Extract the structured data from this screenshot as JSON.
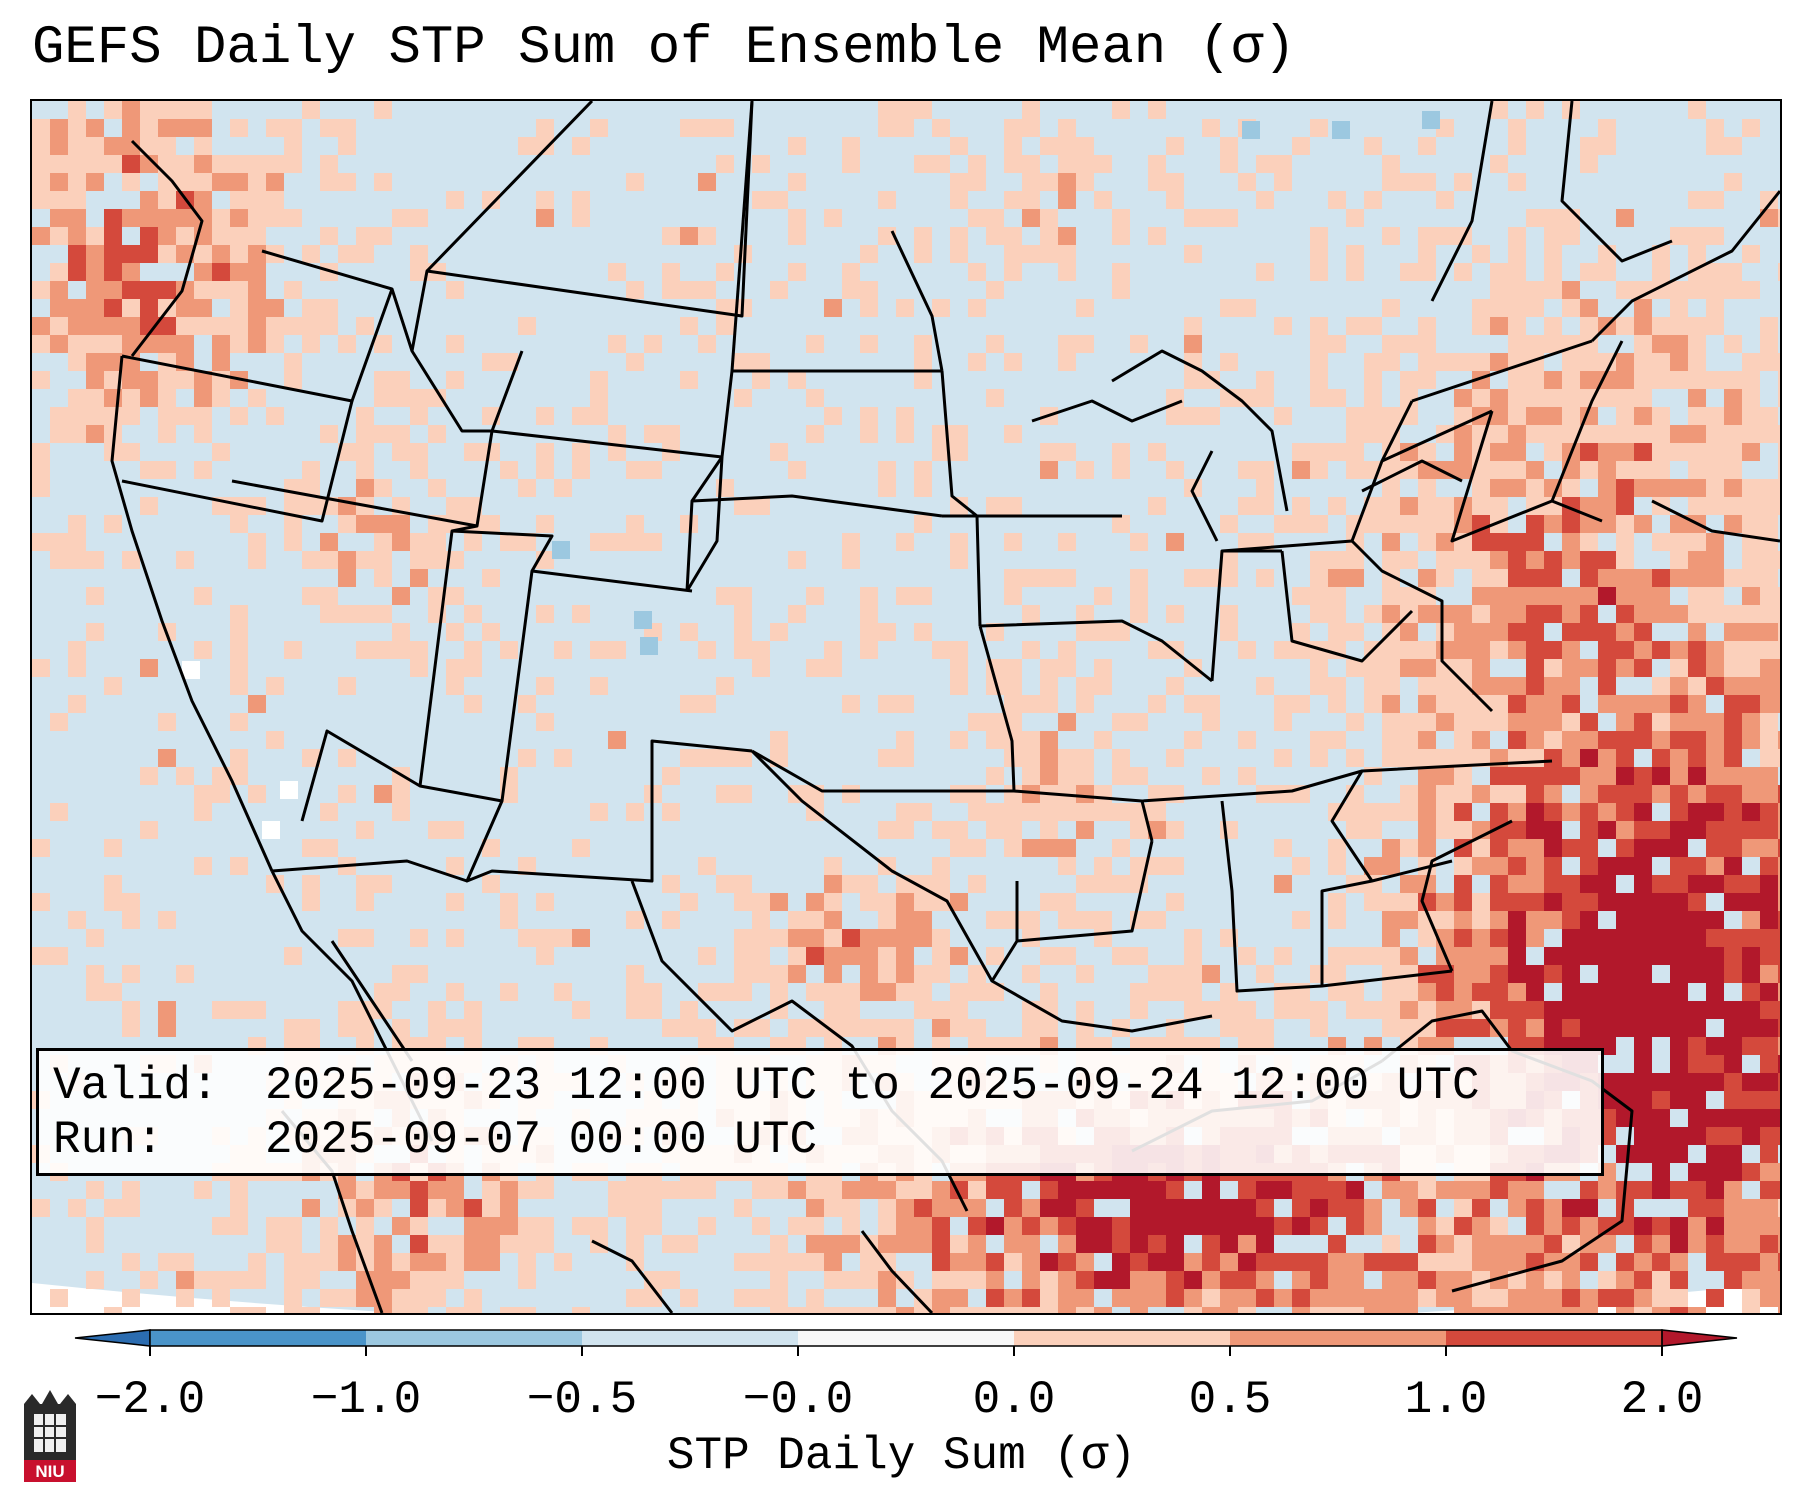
{
  "title": "GEFS Daily STP Sum of Ensemble Mean (σ)",
  "info": {
    "valid_key": "Valid:",
    "valid_value": "2025-09-23 12:00 UTC to 2025-09-24 12:00 UTC",
    "run_key": "Run:",
    "run_value": "2025-09-07 00:00 UTC"
  },
  "colorbar": {
    "label": "STP Daily Sum (σ)",
    "ticks": [
      "−2.0",
      "−1.0",
      "−0.5",
      "−0.0",
      "0.0",
      "0.5",
      "1.0",
      "2.0"
    ],
    "colors": [
      "#2b6cb0",
      "#4a94c9",
      "#9cc8e0",
      "#d1e4ef",
      "#f7f7f7",
      "#fbd0bb",
      "#ef9878",
      "#d4493c",
      "#b2182b"
    ],
    "extend": "both"
  },
  "map": {
    "projection": "Lambert Conformal",
    "region": "CONUS",
    "hotspots": [
      {
        "region": "Western Atlantic",
        "value": 2.0
      },
      {
        "region": "Gulf of Mexico",
        "value": 2.0
      },
      {
        "region": "Mid-Atlantic coast",
        "value": 1.0
      },
      {
        "region": "Central Texas",
        "value": 1.0
      },
      {
        "region": "Pacific Northwest",
        "value": 1.0
      }
    ]
  },
  "logo": {
    "text": "NIU"
  }
}
